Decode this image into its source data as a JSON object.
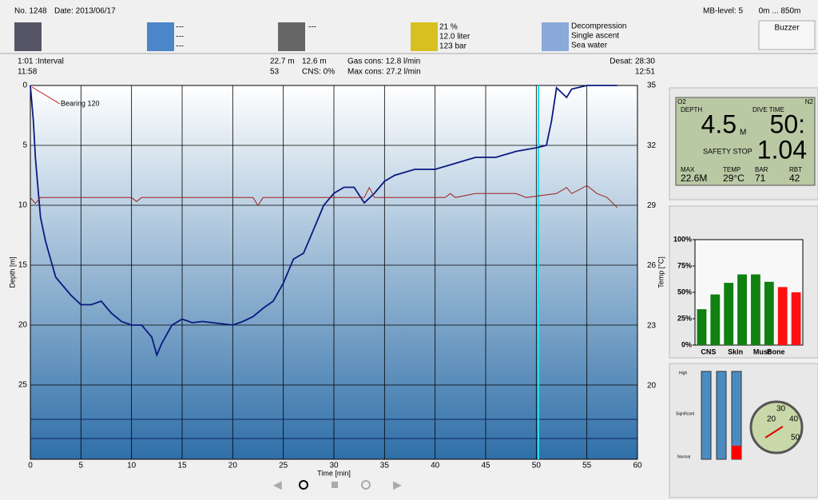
{
  "header": {
    "number": "No. 1248",
    "date": "Date: 2013/06/17",
    "mb_level": "MB-level: 5",
    "altitude": "0m ... 850m",
    "buzzer": "Buzzer"
  },
  "info": {
    "weather": [
      "---",
      "---",
      "---"
    ],
    "camera": "---",
    "gas": [
      "21 %",
      "12.0 liter",
      "123 bar"
    ],
    "mode": [
      "Decompression",
      "Single ascent",
      "Sea water"
    ]
  },
  "stats": {
    "interval": "1:01 :Interval",
    "entry_time": "11:58",
    "max_depth": "22.7 m",
    "avg_depth": "12.6 m",
    "duration": "53",
    "cns": "CNS:  0%",
    "gas_cons": "Gas cons: 12.8 l/min",
    "max_cons": "Max cons: 27.2 l/min",
    "desat": "Desat: 28:30",
    "exit_time": "12:51"
  },
  "computer": {
    "o2": "O2",
    "n2": "N2",
    "depth_label": "DEPTH",
    "depth": "4.5",
    "depth_unit": "M",
    "time_label": "DIVE TIME",
    "time": "50:",
    "stop_label": "SAFETY STOP",
    "stop": "1.04",
    "max_label": "MAX",
    "max": "22.6M",
    "temp_label": "TEMP",
    "temp": "29°C",
    "bar_label": "BAR",
    "bar": "71",
    "rbt_label": "RBT",
    "rbt": "42"
  },
  "gauge": {
    "levels": [
      "High",
      "Significant",
      "Normal"
    ],
    "dial": [
      "20",
      "30",
      "40",
      "50"
    ]
  },
  "chart_data": [
    {
      "type": "line",
      "xlabel": "Time [min]",
      "ylabel": "Depth [m]",
      "y2label": "Temp [°C]",
      "annotation": "Bearing 120",
      "xlim": [
        0,
        60
      ],
      "xticks": [
        0,
        5,
        10,
        15,
        20,
        25,
        30,
        35,
        40,
        45,
        50,
        55,
        60
      ],
      "ylim": [
        0,
        31.2
      ],
      "yticks": [
        0,
        5,
        10,
        15,
        20,
        25
      ],
      "y2lim": [
        35,
        16.32
      ],
      "y2ticks": [
        35,
        32,
        29,
        26,
        23,
        20
      ],
      "grid": true,
      "series": [
        {
          "name": "Depth",
          "color": "#0a1a80",
          "x": [
            0,
            0.3,
            0.5,
            0.8,
            1,
            1.5,
            2,
            2.5,
            3,
            4,
            5,
            6,
            7,
            8,
            9,
            10,
            11,
            12,
            12.5,
            13,
            14,
            15,
            16,
            17,
            18,
            19,
            20,
            21,
            22,
            23,
            24,
            25,
            26,
            27,
            28,
            29,
            30,
            31,
            32,
            33,
            34,
            35,
            36,
            38,
            40,
            42,
            44,
            46,
            48,
            50,
            51,
            51.5,
            52,
            53,
            53.5,
            55,
            58
          ],
          "values": [
            0,
            3,
            6,
            9,
            11,
            13,
            14.5,
            16,
            16.5,
            17.5,
            18.3,
            18.3,
            18,
            19,
            19.7,
            20,
            20,
            21,
            22.5,
            21.5,
            20,
            19.5,
            19.8,
            19.7,
            19.8,
            19.9,
            20,
            19.7,
            19.3,
            18.6,
            18,
            16.5,
            14.5,
            14,
            12,
            10,
            9,
            8.5,
            8.5,
            9.8,
            9,
            8,
            7.5,
            7,
            7,
            6.5,
            6,
            6,
            5.5,
            5.2,
            5,
            3,
            0.2,
            1,
            0.3,
            0,
            0
          ]
        },
        {
          "name": "Temp",
          "color": "#a02020",
          "axis": "y2",
          "x": [
            0,
            0.5,
            1,
            10,
            10.5,
            11,
            22,
            22.5,
            23,
            33,
            33.5,
            34,
            41,
            41.5,
            42,
            44,
            48,
            49,
            52,
            53,
            53.5,
            55,
            56,
            57,
            58
          ],
          "values": [
            29.4,
            29.1,
            29.4,
            29.4,
            29.2,
            29.4,
            29.4,
            29,
            29.4,
            29.4,
            29.9,
            29.4,
            29.4,
            29.6,
            29.4,
            29.6,
            29.6,
            29.4,
            29.6,
            29.9,
            29.6,
            30,
            29.6,
            29.4,
            28.9
          ]
        }
      ]
    },
    {
      "type": "bar",
      "categories": [
        "CNS",
        null,
        "Skin",
        null,
        "Musc",
        null,
        "Bone",
        null
      ],
      "values": [
        34,
        48,
        59,
        67,
        67,
        60,
        55,
        50
      ],
      "colors": [
        "#108010",
        "#108010",
        "#108010",
        "#108010",
        "#108010",
        "#108010",
        "#ff1010",
        "#ff1010"
      ],
      "ylim": [
        0,
        100
      ],
      "yticks": [
        {
          "value": 0,
          "label": "0%"
        },
        {
          "value": 25,
          "label": "25%"
        },
        {
          "value": 50,
          "label": "50%"
        },
        {
          "value": 75,
          "label": "75%"
        },
        {
          "value": 100,
          "label": "100%"
        }
      ]
    }
  ]
}
